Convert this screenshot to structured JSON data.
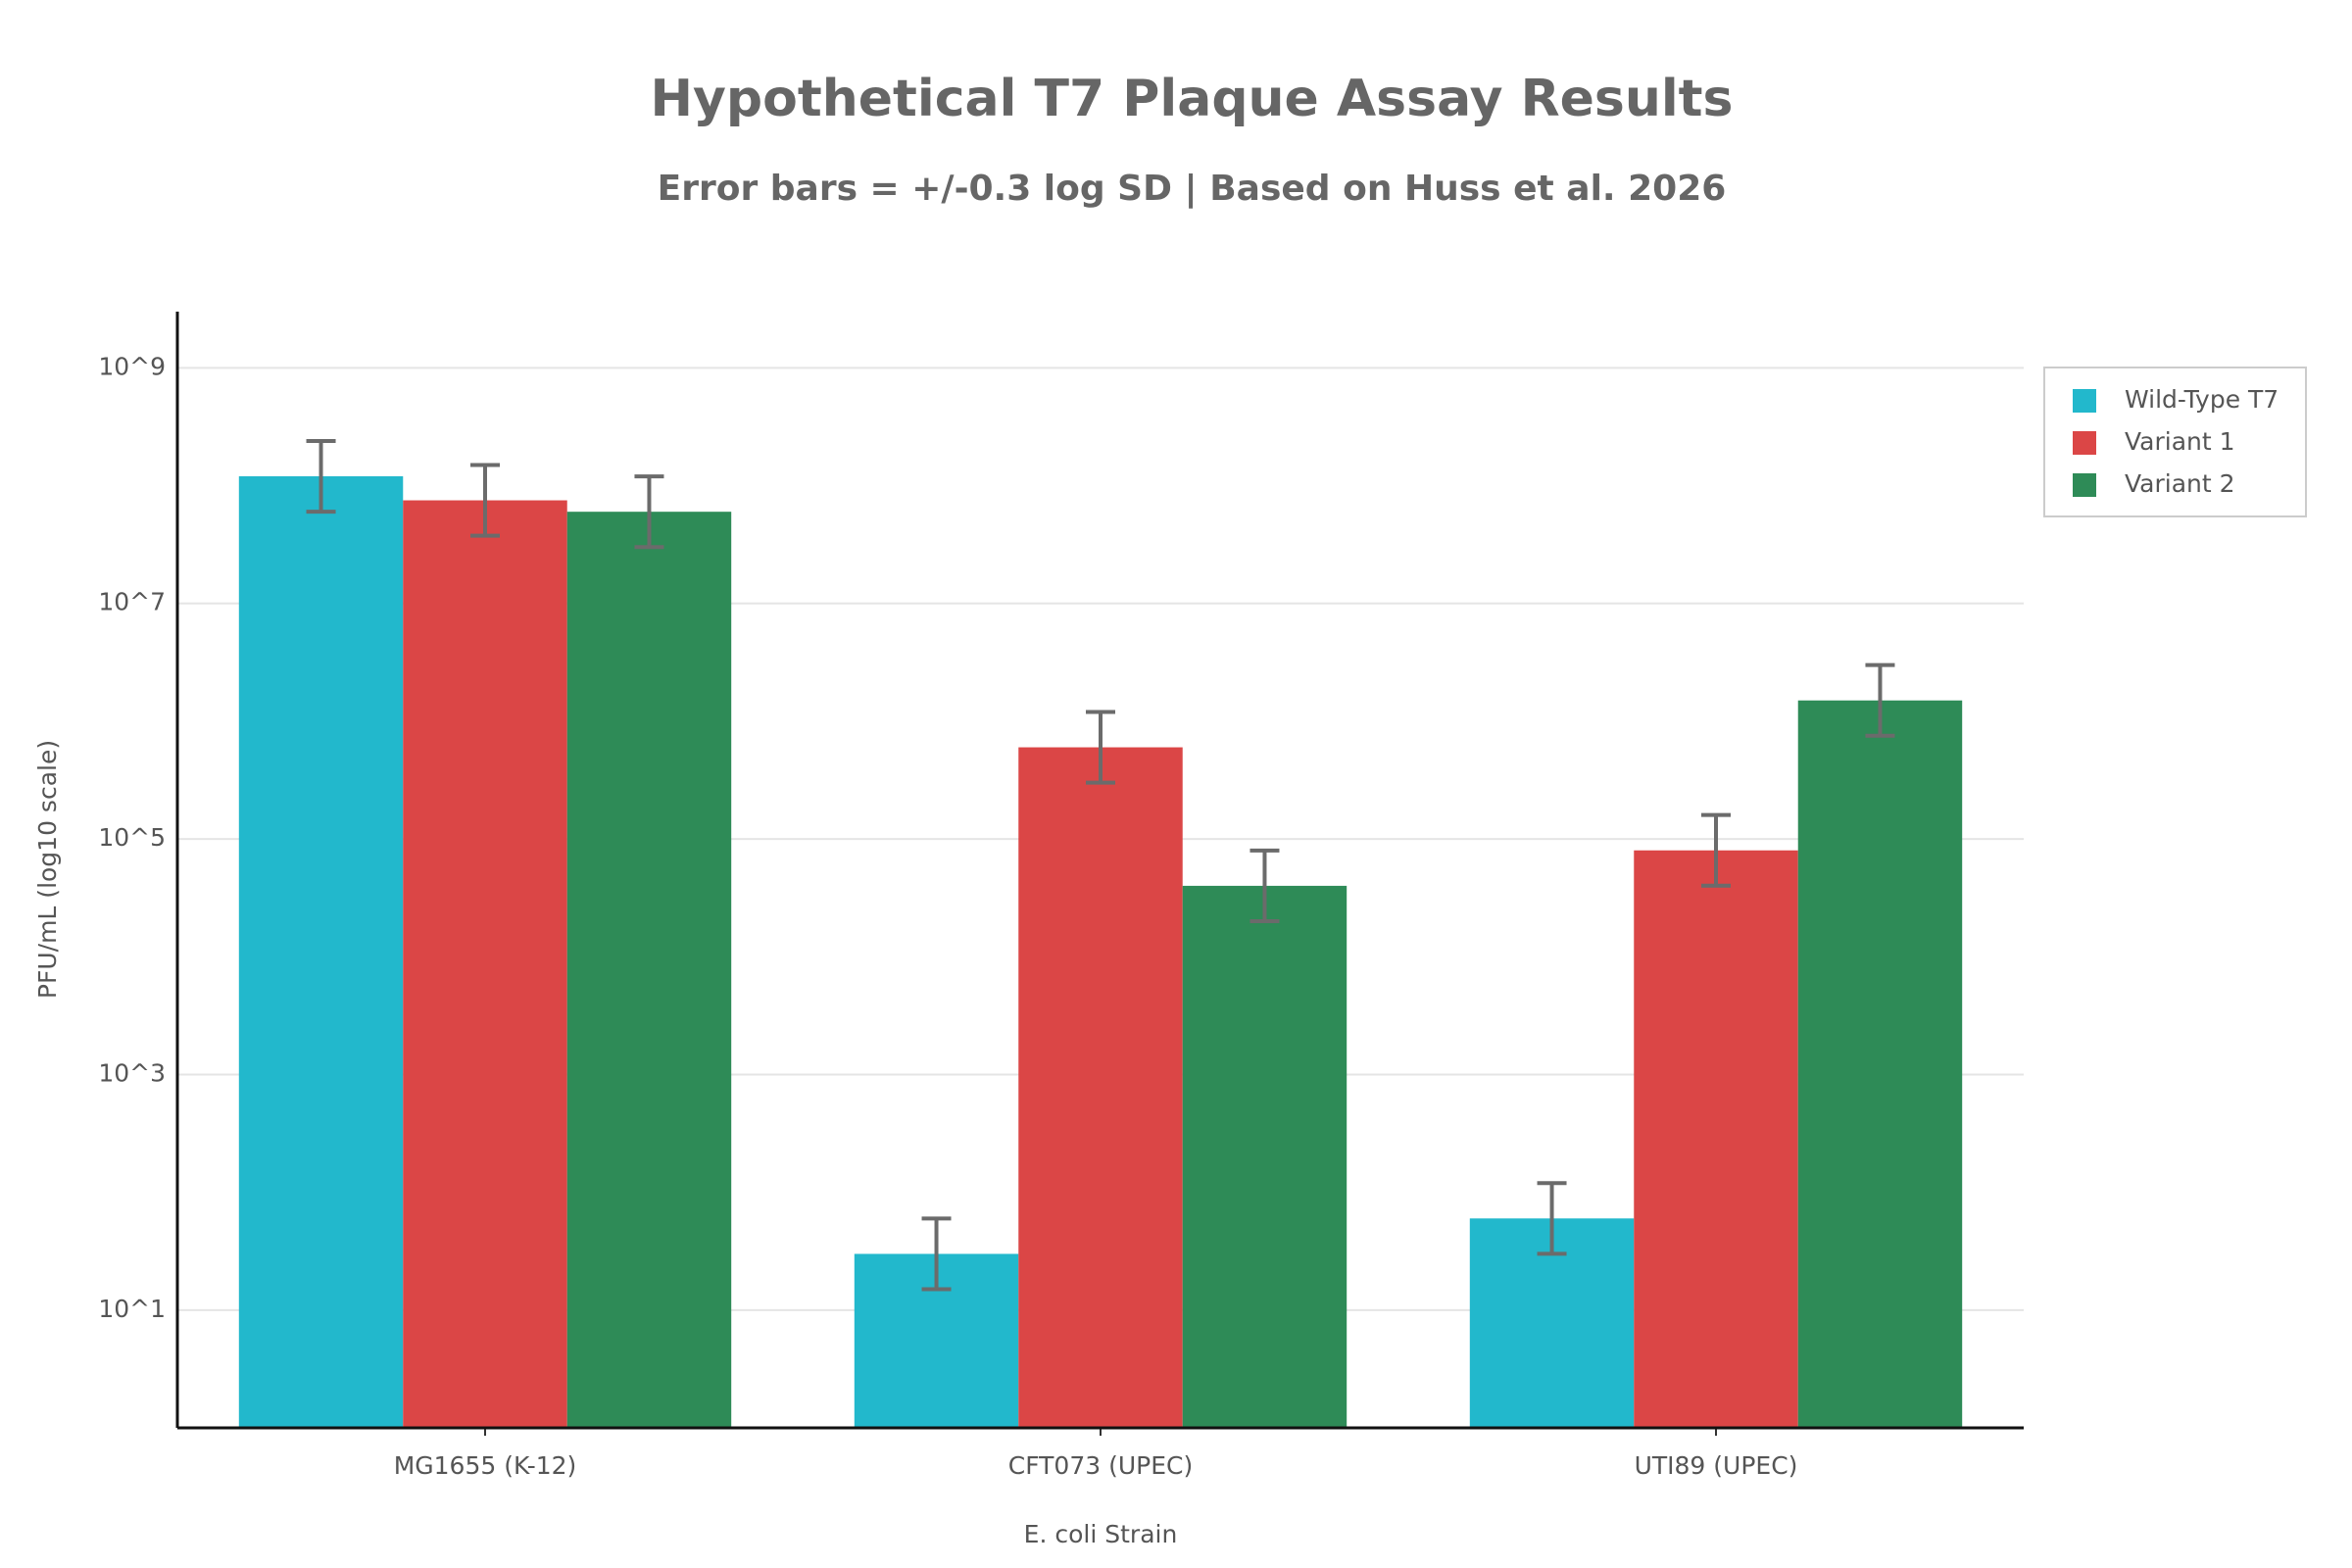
{
  "chart_data": {
    "type": "bar",
    "title": "Hypothetical T7 Plaque Assay Results",
    "subtitle": "Error bars = +/-0.3 log SD | Based on Huss et al. 2026",
    "x_label": "E. coli Strain",
    "y_label": "PFU/mL (log10 scale)",
    "categories": [
      "MG1655 (K-12)",
      "CFT073 (UPEC)",
      "UTI89 (UPEC)"
    ],
    "series": [
      {
        "name": "Wild-Type T7",
        "color": "#22b8cc",
        "values": [
          120000000,
          30,
          60
        ],
        "errors_log": [
          0.3,
          0.3,
          0.3
        ]
      },
      {
        "name": "Variant 1",
        "color": "#db4646",
        "values": [
          75000000,
          600000,
          80000
        ],
        "errors_log": [
          0.3,
          0.3,
          0.3
        ]
      },
      {
        "name": "Variant 2",
        "color": "#2e8b57",
        "values": [
          60000000,
          40000,
          1500000
        ],
        "errors_log": [
          0.3,
          0.3,
          0.3
        ]
      }
    ],
    "log_y": true,
    "ylim": [
      1,
      3000000000
    ],
    "yticks": [
      {
        "value": 10,
        "label": "10^1"
      },
      {
        "value": 1000,
        "label": "10^3"
      },
      {
        "value": 100000,
        "label": "10^5"
      },
      {
        "value": 10000000,
        "label": "10^7"
      },
      {
        "value": 1000000000,
        "label": "10^9"
      }
    ],
    "grid": true,
    "legend": "upper right"
  }
}
